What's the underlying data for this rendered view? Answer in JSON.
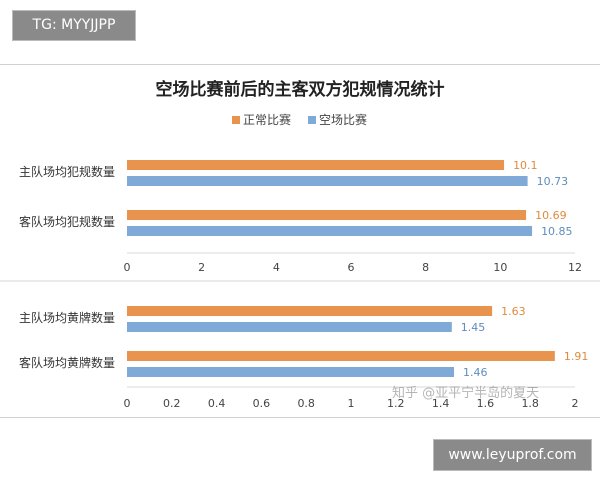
{
  "tag_badge": "TG: MYYJJPP",
  "site_badge": "www.leyuprof.com",
  "watermark": "知乎 @亚平宁半岛的夏天",
  "colors": {
    "series_normal": "#e8944f",
    "series_empty": "#7fa9d6",
    "label_normal": "#e08a3c",
    "label_empty": "#5e8dbf"
  },
  "chart_data": [
    {
      "type": "bar",
      "orientation": "horizontal",
      "title": "空场比赛前后的主客双方犯规情况统计",
      "legend": [
        "正常比赛",
        "空场比赛"
      ],
      "legend_position": "top",
      "categories": [
        "主队场均犯规数量",
        "客队场均犯规数量"
      ],
      "series": [
        {
          "name": "正常比赛",
          "values": [
            10.1,
            10.69
          ],
          "labels": [
            "10.1",
            "10.69"
          ]
        },
        {
          "name": "空场比赛",
          "values": [
            10.73,
            10.85
          ],
          "labels": [
            "10.73",
            "10.85"
          ]
        }
      ],
      "xlim": [
        0,
        12
      ],
      "xticks": [
        "0",
        "2",
        "4",
        "6",
        "8",
        "10",
        "12"
      ]
    },
    {
      "type": "bar",
      "orientation": "horizontal",
      "categories": [
        "主队场均黄牌数量",
        "客队场均黄牌数量"
      ],
      "series": [
        {
          "name": "正常比赛",
          "values": [
            1.63,
            1.91
          ],
          "labels": [
            "1.63",
            "1.91"
          ]
        },
        {
          "name": "空场比赛",
          "values": [
            1.45,
            1.46
          ],
          "labels": [
            "1.45",
            "1.46"
          ]
        }
      ],
      "xlim": [
        0,
        2
      ],
      "xticks": [
        "0",
        "0.2",
        "0.4",
        "0.6",
        "0.8",
        "1",
        "1.2",
        "1.4",
        "1.6",
        "1.8",
        "2"
      ]
    }
  ]
}
